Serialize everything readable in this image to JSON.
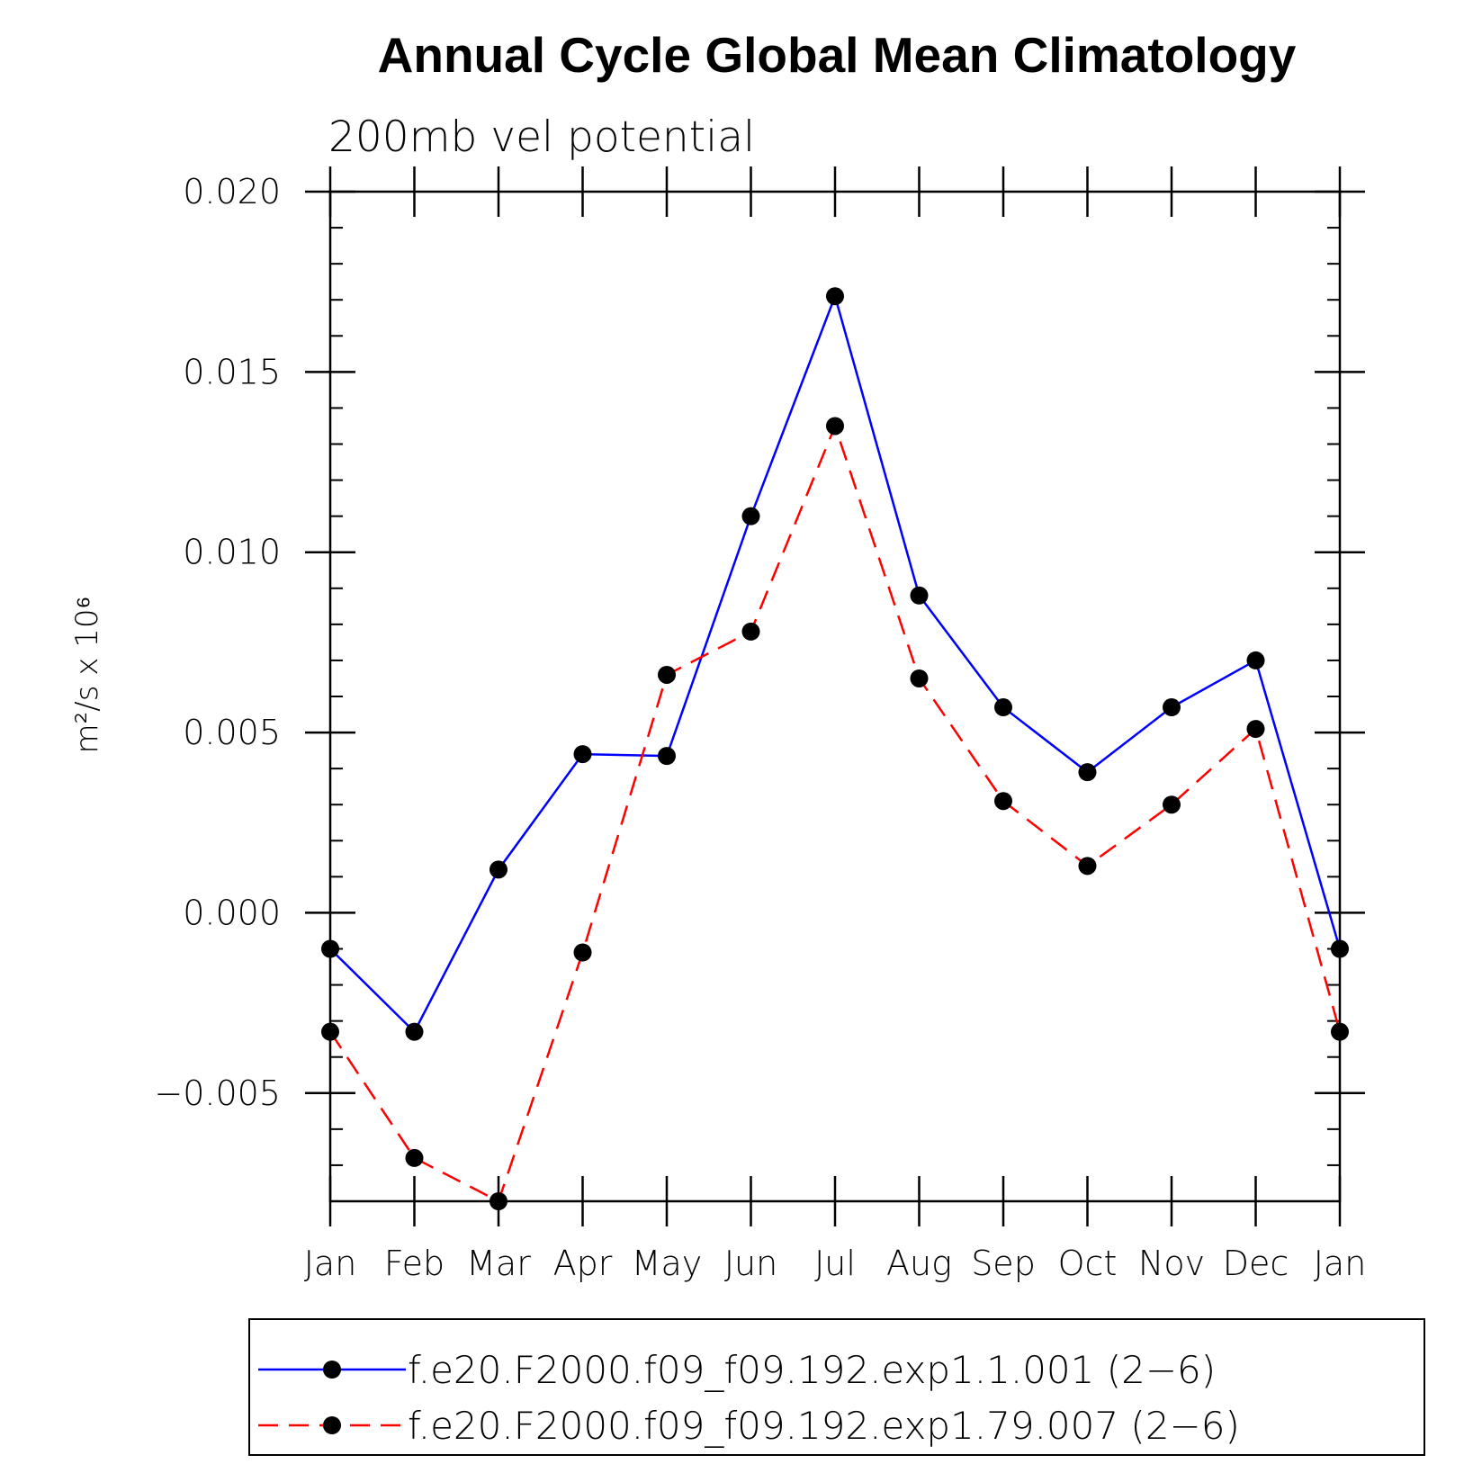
{
  "chart_data": {
    "type": "line",
    "title": "Annual Cycle Global Mean Climatology",
    "subtitle": "200mb vel potential",
    "ylabel": "m²/s x 10⁶",
    "xlabel": "",
    "categories": [
      "Jan",
      "Feb",
      "Mar",
      "Apr",
      "May",
      "Jun",
      "Jul",
      "Aug",
      "Sep",
      "Oct",
      "Nov",
      "Dec",
      "Jan"
    ],
    "ylim": [
      -0.008,
      0.02
    ],
    "yticks": [
      -0.005,
      0.0,
      0.005,
      0.01,
      0.015,
      0.02
    ],
    "ytick_labels": [
      "−0.005",
      "0.000",
      "0.005",
      "0.010",
      "0.015",
      "0.020"
    ],
    "grid": false,
    "legend_position": "bottom",
    "series": [
      {
        "name": "f.e20.F2000.f09_f09.192.exp1.1.001 (2−6)",
        "color": "#0000ff",
        "dash": "solid",
        "values": [
          -0.001,
          -0.0033,
          0.0012,
          0.0044,
          0.00435,
          0.011,
          0.0171,
          0.0088,
          0.0057,
          0.0039,
          0.0057,
          0.007,
          -0.001
        ]
      },
      {
        "name": "f.e20.F2000.f09_f09.192.exp1.79.007 (2−6)",
        "color": "#ff0000",
        "dash": "dashed",
        "values": [
          -0.0033,
          -0.0068,
          -0.008,
          -0.0011,
          0.0066,
          0.0078,
          0.0135,
          0.0065,
          0.0031,
          0.0013,
          0.003,
          0.0051,
          -0.0033
        ]
      }
    ]
  }
}
